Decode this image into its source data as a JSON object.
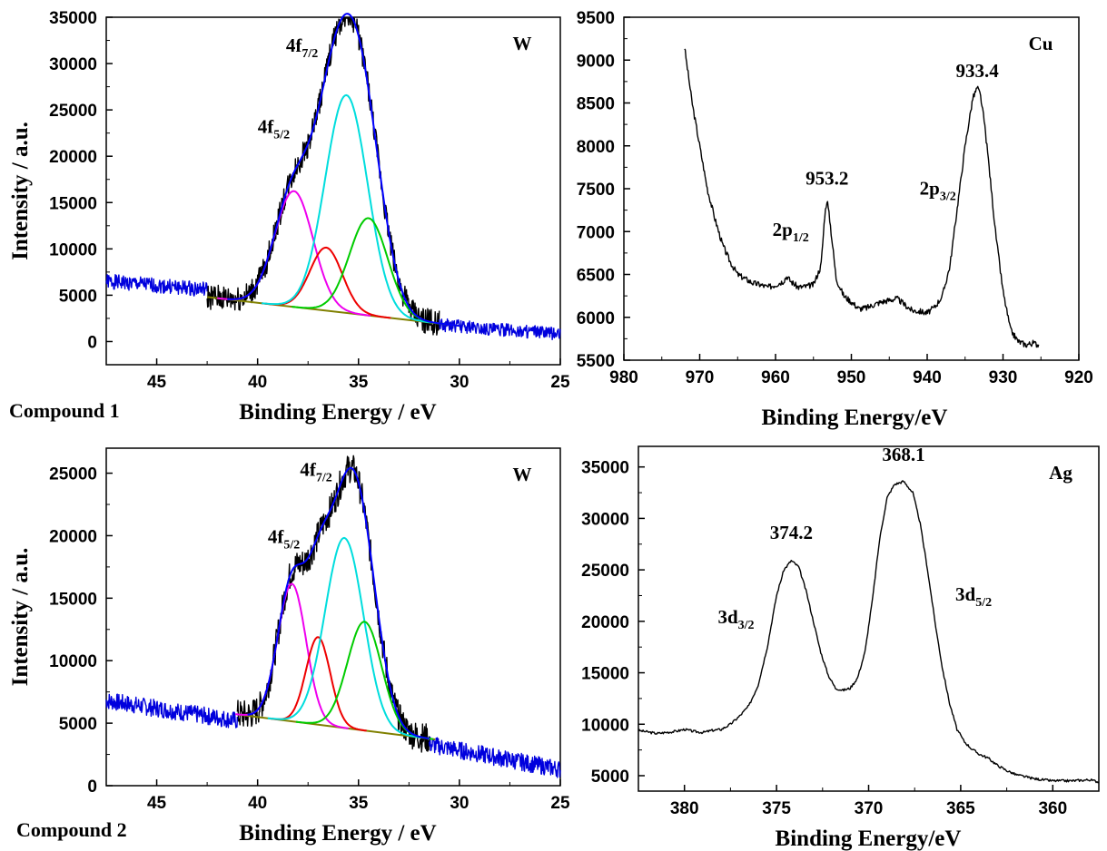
{
  "colors": {
    "raw_w": "#0000dd",
    "fit": "#0000ff",
    "raw_xps": "#000000",
    "p_pink": "#ee00ee",
    "p_red": "#ee0000",
    "p_cyan": "#00dddd",
    "p_green": "#00cc00",
    "baseline": "#808000"
  },
  "chart_data": [
    {
      "id": "w1",
      "type": "line",
      "element_label": "W",
      "caption": "Compound 1",
      "xlabel": "Binding Energy / eV",
      "ylabel": "Intensity / a.u.",
      "xlim": [
        47.5,
        25
      ],
      "ylim": [
        -2500,
        35000
      ],
      "xticks": [
        45,
        40,
        35,
        30,
        25
      ],
      "yticks": [
        0,
        5000,
        10000,
        15000,
        20000,
        25000,
        30000,
        35000
      ],
      "annotations": [
        {
          "text": "4f",
          "sub": "5/2",
          "x": 39.2,
          "y": 22500
        },
        {
          "text": "4f",
          "sub": "7/2",
          "x": 37.8,
          "y": 31300
        }
      ],
      "noise_seed": 1,
      "series": [
        {
          "role": "raw",
          "color_key": "raw_w",
          "x_range": [
            47.5,
            42.5
          ],
          "baseline_left": 6500,
          "baseline_right": 5600,
          "noise": 800
        },
        {
          "role": "raw",
          "color_key": "raw_xps",
          "x_range": [
            42.5,
            31
          ],
          "fit_ref": true,
          "noise": 1400
        },
        {
          "role": "raw",
          "color_key": "raw_w",
          "x_range": [
            31,
            25
          ],
          "baseline_left": 1800,
          "baseline_right": 800,
          "noise": 700
        },
        {
          "role": "baseline",
          "color_key": "baseline",
          "x": [
            42.5,
            30
          ],
          "y": [
            4800,
            1700
          ]
        },
        {
          "role": "peak",
          "color_key": "p_pink",
          "center": 38.2,
          "height": 12500,
          "sigma": 0.95
        },
        {
          "role": "peak",
          "color_key": "p_red",
          "center": 36.6,
          "height": 6800,
          "sigma": 0.8
        },
        {
          "role": "peak",
          "color_key": "p_cyan",
          "center": 35.6,
          "height": 23500,
          "sigma": 1.05
        },
        {
          "role": "peak",
          "color_key": "p_green",
          "center": 34.5,
          "height": 10500,
          "sigma": 0.95
        },
        {
          "role": "fit",
          "color_key": "fit",
          "x_range": [
            41.5,
            30
          ]
        }
      ]
    },
    {
      "id": "cu",
      "type": "line",
      "element_label": "Cu",
      "xlabel": "Binding Energy/eV",
      "ylabel": "",
      "xlim": [
        980,
        920
      ],
      "ylim": [
        5500,
        9500
      ],
      "xticks": [
        980,
        970,
        960,
        950,
        940,
        930,
        920
      ],
      "yticks": [
        5500,
        6000,
        6500,
        7000,
        7500,
        8000,
        8500,
        9000,
        9500
      ],
      "annotations": [
        {
          "text": "933.4",
          "x": 933.4,
          "y": 8800
        },
        {
          "text": "953.2",
          "x": 953.2,
          "y": 7550
        },
        {
          "text": "2p",
          "sub": "1/2",
          "x": 958.0,
          "y": 6950
        },
        {
          "text": "2p",
          "sub": "3/2",
          "x": 938.6,
          "y": 7430
        }
      ],
      "series": [
        {
          "role": "raw",
          "color_key": "raw_xps",
          "x": [
            972,
            971,
            970,
            969,
            968,
            967,
            966,
            965,
            964,
            963,
            962,
            961,
            960,
            959,
            958.5,
            958,
            957,
            956,
            955,
            954,
            953.5,
            953.2,
            952.8,
            952,
            951,
            950,
            949,
            948,
            947,
            946,
            945,
            944,
            943,
            942,
            941,
            940,
            939,
            938,
            937,
            936,
            935,
            934,
            933.4,
            933,
            932.5,
            932,
            931,
            930,
            929,
            928,
            927,
            926,
            925.3
          ],
          "y": [
            9150,
            8500,
            8000,
            7500,
            7150,
            6850,
            6650,
            6500,
            6450,
            6400,
            6380,
            6350,
            6380,
            6420,
            6480,
            6420,
            6350,
            6360,
            6380,
            6600,
            7200,
            7380,
            7100,
            6450,
            6250,
            6180,
            6100,
            6110,
            6150,
            6180,
            6200,
            6220,
            6150,
            6080,
            6070,
            6050,
            6120,
            6250,
            6600,
            7300,
            8000,
            8550,
            8680,
            8600,
            8300,
            7900,
            7000,
            6300,
            5850,
            5720,
            5680,
            5700,
            5680
          ],
          "noise": 35
        }
      ]
    },
    {
      "id": "w2",
      "type": "line",
      "element_label": "W",
      "caption": "Compound 2",
      "xlabel": "Binding Energy / eV",
      "ylabel": "Intensity / a.u.",
      "xlim": [
        47.5,
        25
      ],
      "ylim": [
        0,
        27000
      ],
      "xticks": [
        45,
        40,
        35,
        30,
        25
      ],
      "yticks": [
        0,
        5000,
        10000,
        15000,
        20000,
        25000
      ],
      "annotations": [
        {
          "text": "4f",
          "sub": "5/2",
          "x": 38.7,
          "y": 19400
        },
        {
          "text": "4f",
          "sub": "7/2",
          "x": 37.1,
          "y": 24800
        }
      ],
      "noise_seed": 7,
      "series": [
        {
          "role": "raw",
          "color_key": "raw_w",
          "x_range": [
            47.5,
            41
          ],
          "baseline_left": 6800,
          "baseline_right": 5200,
          "noise": 700
        },
        {
          "role": "raw",
          "color_key": "raw_xps",
          "x_range": [
            41,
            31.5
          ],
          "fit_ref": true,
          "noise": 1200
        },
        {
          "role": "raw",
          "color_key": "raw_w",
          "x_range": [
            31.5,
            25
          ],
          "baseline_left": 3300,
          "baseline_right": 1300,
          "noise": 700
        },
        {
          "role": "baseline",
          "color_key": "baseline",
          "x": [
            41,
            31.2
          ],
          "y": [
            5700,
            3700
          ]
        },
        {
          "role": "peak",
          "color_key": "p_pink",
          "center": 38.3,
          "height": 11000,
          "sigma": 0.7
        },
        {
          "role": "peak",
          "color_key": "p_red",
          "center": 37.0,
          "height": 7000,
          "sigma": 0.6
        },
        {
          "role": "peak",
          "color_key": "p_cyan",
          "center": 35.7,
          "height": 15200,
          "sigma": 0.95
        },
        {
          "role": "peak",
          "color_key": "p_green",
          "center": 34.7,
          "height": 8700,
          "sigma": 0.85
        },
        {
          "role": "fit",
          "color_key": "fit",
          "x_range": [
            40.5,
            31.5
          ]
        }
      ]
    },
    {
      "id": "ag",
      "type": "line",
      "element_label": "Ag",
      "xlabel": "Binding Energy/eV",
      "ylabel": "",
      "xlim": [
        382.5,
        357.5
      ],
      "ylim": [
        3500,
        37000
      ],
      "xticks": [
        380,
        375,
        370,
        365,
        360
      ],
      "yticks": [
        5000,
        10000,
        15000,
        20000,
        25000,
        30000,
        35000
      ],
      "annotations": [
        {
          "text": "374.2",
          "x": 374.2,
          "y": 28000
        },
        {
          "text": "368.1",
          "x": 368.1,
          "y": 35600
        },
        {
          "text": "3d",
          "sub": "3/2",
          "x": 377.2,
          "y": 19800
        },
        {
          "text": "3d",
          "sub": "5/2",
          "x": 364.3,
          "y": 22000
        }
      ],
      "series": [
        {
          "role": "raw",
          "color_key": "raw_xps",
          "x": [
            382.5,
            381.5,
            380.5,
            380,
            379.5,
            379,
            378.5,
            378,
            377.5,
            377,
            376.5,
            376,
            375.5,
            375,
            374.6,
            374.2,
            373.8,
            373.4,
            373,
            372.6,
            372.2,
            371.8,
            371.4,
            371,
            370.6,
            370.2,
            369.8,
            369.4,
            369,
            368.6,
            368.1,
            367.6,
            367.2,
            366.8,
            366.4,
            366,
            365.6,
            365.2,
            364.8,
            364.4,
            364,
            363.5,
            363,
            362.5,
            362,
            361.5,
            361,
            360,
            359,
            358,
            357.5
          ],
          "y": [
            9400,
            9100,
            9300,
            9500,
            9300,
            9200,
            9400,
            9500,
            10000,
            10800,
            11800,
            13800,
            17500,
            22500,
            25000,
            25900,
            25300,
            23000,
            20000,
            17000,
            14800,
            13500,
            13300,
            13500,
            14500,
            17000,
            22000,
            28000,
            32000,
            33300,
            33600,
            32500,
            29500,
            25000,
            20000,
            15500,
            12000,
            9500,
            8300,
            7600,
            7100,
            6700,
            6000,
            5500,
            5100,
            4900,
            4700,
            4500,
            4500,
            4600,
            4400
          ],
          "noise": 120
        }
      ]
    }
  ]
}
